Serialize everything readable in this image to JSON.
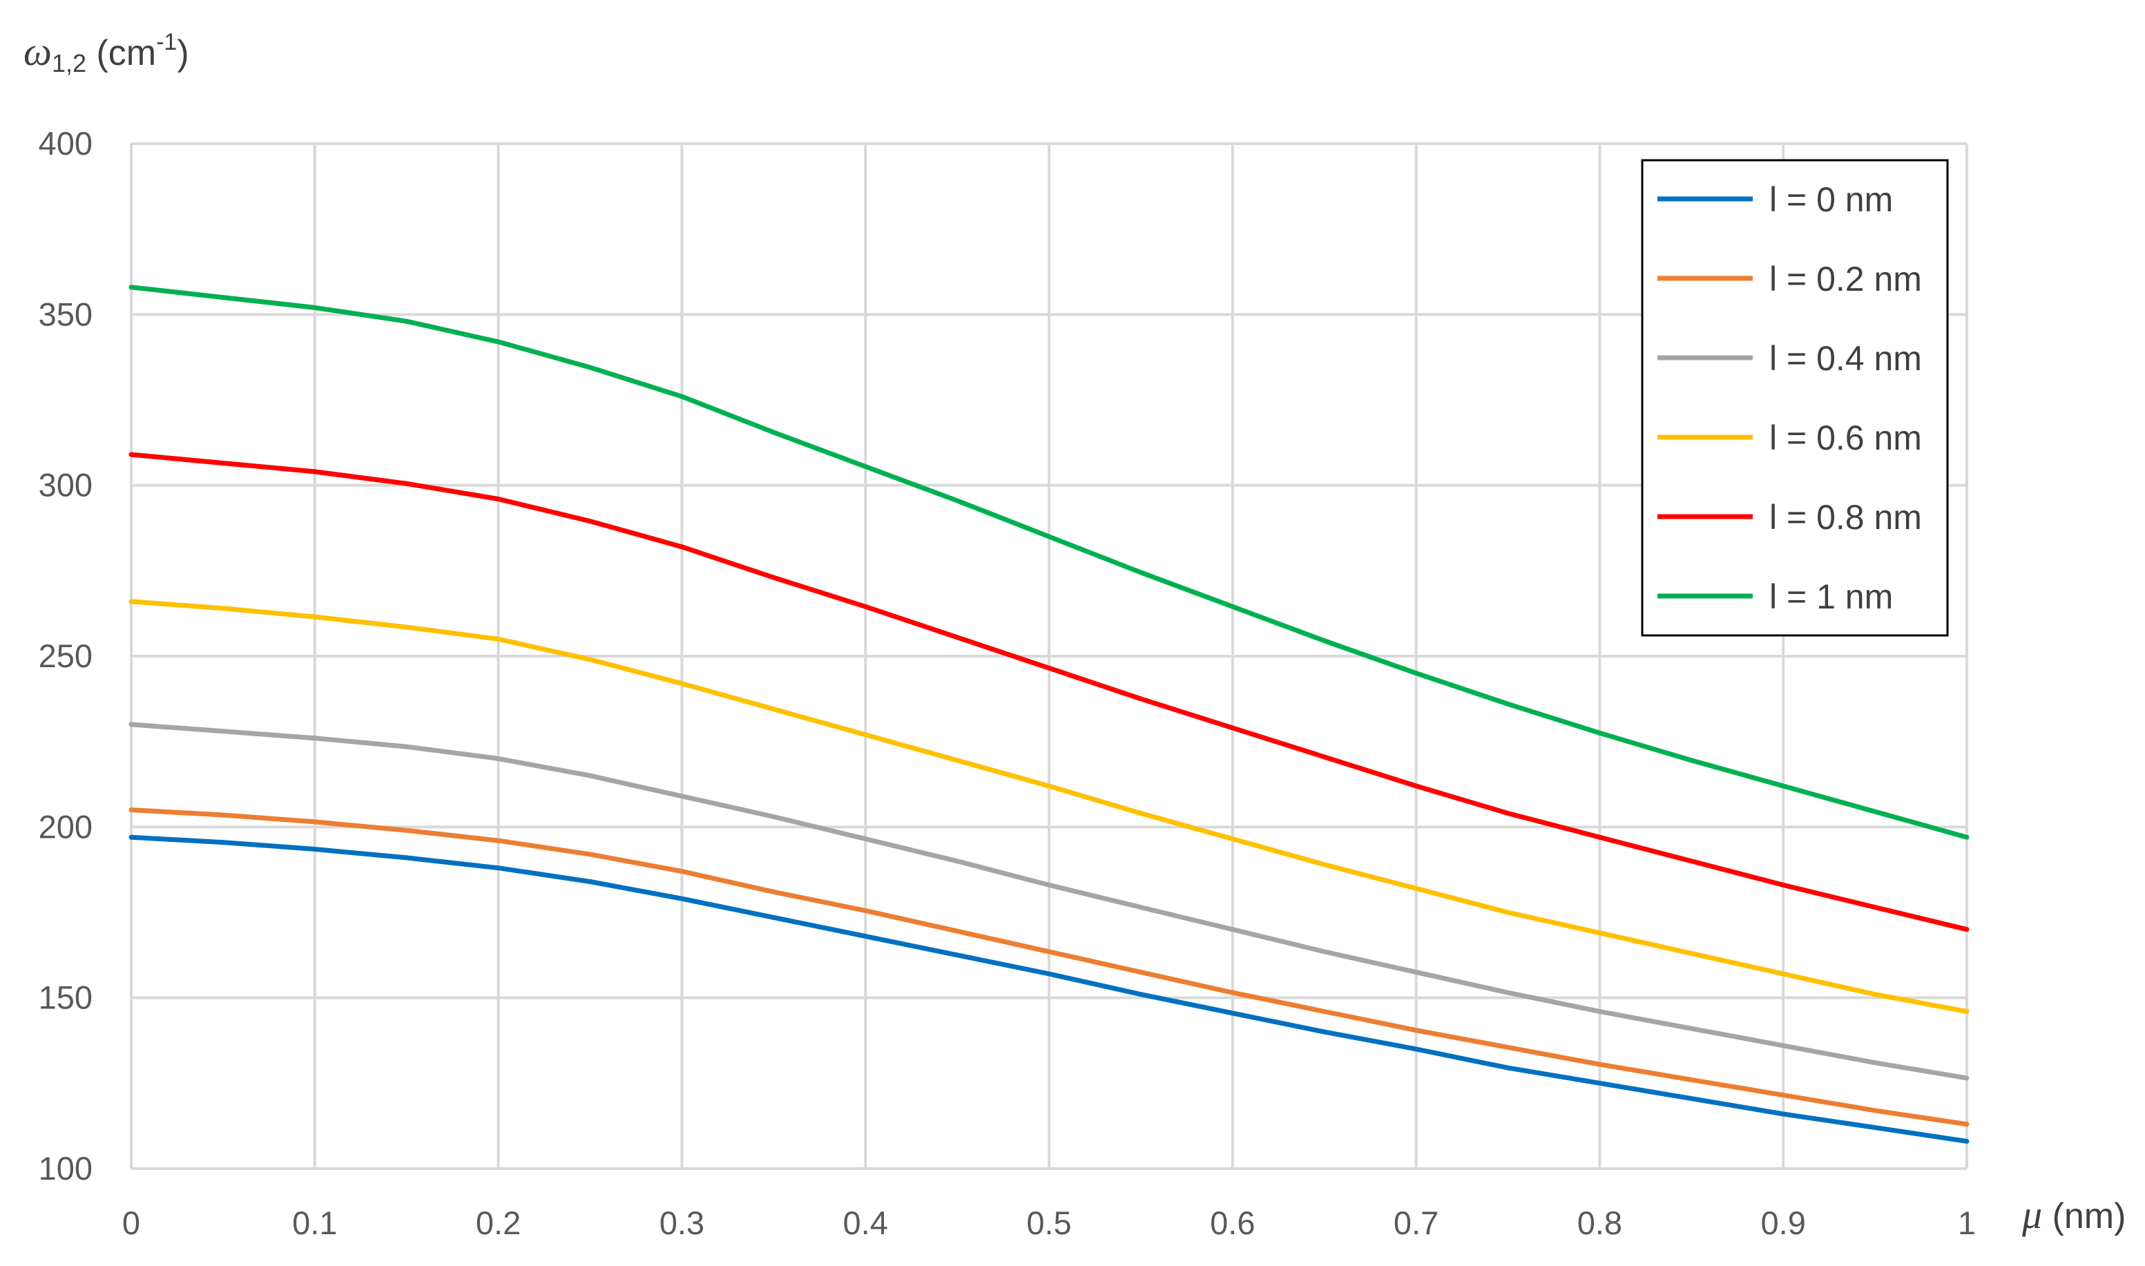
{
  "chart_data": {
    "type": "line",
    "xlabel": {
      "symbol": "μ",
      "unit": " (nm)"
    },
    "ylabel": {
      "symbol": "ω",
      "sub": "1,2",
      "unit_pre": " (cm",
      "sup": "-1",
      "unit_post": ")"
    },
    "xlim": [
      0,
      1
    ],
    "ylim": [
      100,
      400
    ],
    "xticks": [
      "0",
      "0.1",
      "0.2",
      "0.3",
      "0.4",
      "0.5",
      "0.6",
      "0.7",
      "0.8",
      "0.9",
      "1"
    ],
    "yticks": [
      "100",
      "150",
      "200",
      "250",
      "300",
      "350",
      "400"
    ],
    "grid": true,
    "legend_position": "top-right",
    "x": [
      0,
      0.05,
      0.1,
      0.15,
      0.2,
      0.25,
      0.3,
      0.35,
      0.4,
      0.45,
      0.5,
      0.55,
      0.6,
      0.65,
      0.7,
      0.75,
      0.8,
      0.85,
      0.9,
      0.95,
      1
    ],
    "series": [
      {
        "name": "l = 0 nm",
        "color": "#0070c0",
        "values": [
          197,
          195.5,
          193.5,
          191,
          188,
          184,
          179,
          173.5,
          168,
          162.5,
          157,
          151,
          145.5,
          140,
          135,
          129.5,
          125,
          120.5,
          116,
          112,
          108
        ]
      },
      {
        "name": "l = 0.2 nm",
        "color": "#ed7d31",
        "values": [
          205,
          203.5,
          201.5,
          199,
          196,
          192,
          187,
          181,
          175.5,
          169.5,
          163.5,
          157.5,
          151.5,
          146,
          140.5,
          135.5,
          130.5,
          126,
          121.5,
          117,
          113
        ]
      },
      {
        "name": "l = 0.4 nm",
        "color": "#a5a5a5",
        "values": [
          230,
          228,
          226,
          223.5,
          220,
          215,
          209,
          203,
          196.5,
          190,
          183,
          176.5,
          170,
          163.5,
          157.5,
          151.5,
          146,
          141,
          136,
          131,
          126.5
        ]
      },
      {
        "name": "l = 0.6 nm",
        "color": "#ffc000",
        "values": [
          266,
          264,
          261.5,
          258.5,
          255,
          249,
          242,
          234.5,
          227,
          219.5,
          212,
          204,
          196.5,
          189,
          182,
          175,
          169,
          163,
          157,
          151,
          146
        ]
      },
      {
        "name": "l = 0.8 nm",
        "color": "#ff0000",
        "values": [
          309,
          306.5,
          304,
          300.5,
          296,
          289.5,
          282,
          273,
          264.5,
          255.5,
          246.5,
          237.5,
          229,
          220.5,
          212,
          204,
          197,
          190,
          183,
          176.5,
          170
        ]
      },
      {
        "name": "l = 1 nm",
        "color": "#00b050",
        "values": [
          358,
          355,
          352,
          348,
          342,
          334.5,
          326,
          315.5,
          305.5,
          295.5,
          285,
          274.5,
          264.5,
          254.5,
          245,
          236,
          227.5,
          219.5,
          212,
          204.5,
          197
        ]
      }
    ]
  }
}
